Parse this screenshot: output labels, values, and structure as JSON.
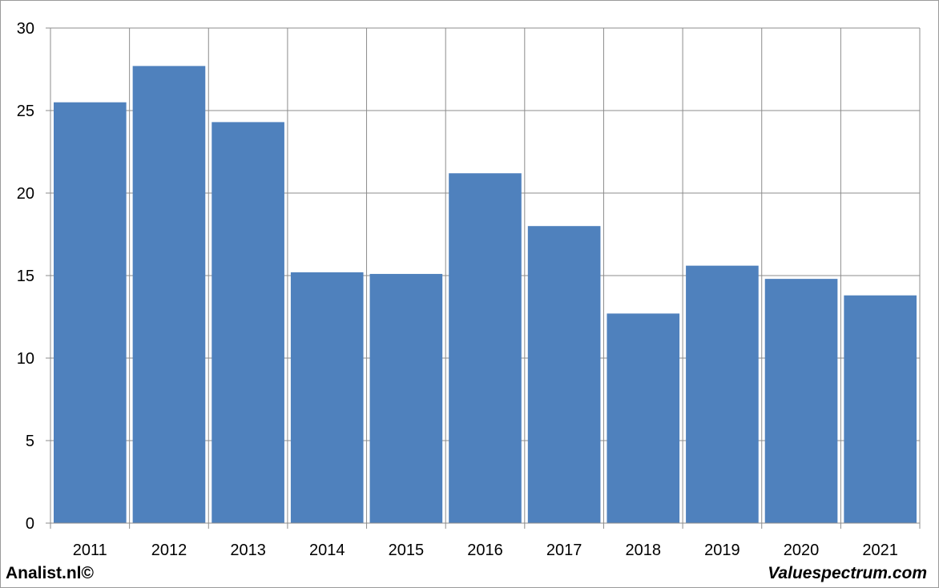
{
  "chart_data": {
    "type": "bar",
    "title": "",
    "xlabel": "",
    "ylabel": "",
    "categories": [
      "2011",
      "2012",
      "2013",
      "2014",
      "2015",
      "2016",
      "2017",
      "2018",
      "2019",
      "2020",
      "2021"
    ],
    "values": [
      25.5,
      27.7,
      24.3,
      15.2,
      15.1,
      21.2,
      18.0,
      12.7,
      15.6,
      14.8,
      13.8
    ],
    "ylim": [
      0,
      30
    ],
    "yticks": [
      0,
      5,
      10,
      15,
      20,
      25,
      30
    ],
    "grid": true,
    "legend": "none",
    "bar_color": "#4f81bd"
  },
  "footer": {
    "left": "Analist.nl©",
    "right": "Valuespectrum.com"
  }
}
